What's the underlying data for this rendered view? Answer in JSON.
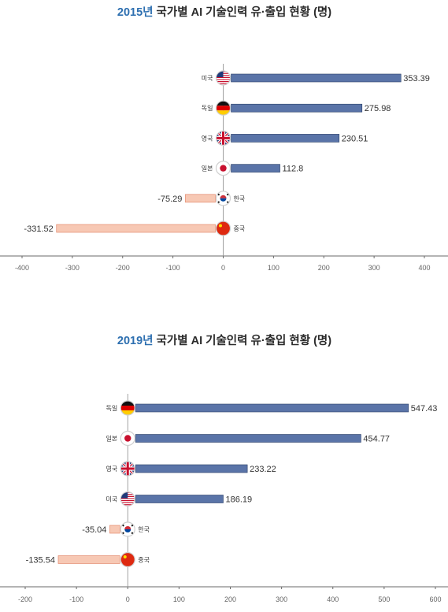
{
  "chart_data": [
    {
      "type": "bar",
      "orientation": "horizontal",
      "title_year": "2015년",
      "title_rest": " 국가별 AI 기술인력 유·출입 현황 (명)",
      "categories": [
        "미국",
        "독일",
        "영국",
        "일본",
        "한국",
        "중국"
      ],
      "values": [
        353.39,
        275.98,
        230.51,
        112.8,
        -75.29,
        -331.52
      ],
      "value_labels": [
        "353.39",
        "275.98",
        "230.51",
        "112.8",
        "-75.29",
        "-331.52"
      ],
      "flags": [
        "us",
        "de",
        "gb",
        "jp",
        "kr",
        "cn"
      ],
      "xlim": [
        -400,
        400
      ],
      "xticks": [
        "-400",
        "-300",
        "-200",
        "-100",
        "0",
        "100",
        "200",
        "300",
        "400"
      ],
      "colors": {
        "positive": "#5a74a8",
        "negative": "#f7c8b4"
      }
    },
    {
      "type": "bar",
      "orientation": "horizontal",
      "title_year": "2019년",
      "title_rest": " 국가별 AI 기술인력 유·출입 현황 (명)",
      "categories": [
        "독일",
        "일본",
        "영국",
        "미국",
        "한국",
        "중국"
      ],
      "values": [
        547.43,
        454.77,
        233.22,
        186.19,
        -35.04,
        -135.54
      ],
      "value_labels": [
        "547.43",
        "454.77",
        "233.22",
        "186.19",
        "-35.04",
        "-135.54"
      ],
      "flags": [
        "de",
        "jp",
        "gb",
        "us",
        "kr",
        "cn"
      ],
      "xlim": [
        -200,
        600
      ],
      "xticks": [
        "-200",
        "-100",
        "0",
        "100",
        "200",
        "300",
        "400",
        "500",
        "600"
      ],
      "colors": {
        "positive": "#5a74a8",
        "negative": "#f7c8b4"
      }
    }
  ]
}
